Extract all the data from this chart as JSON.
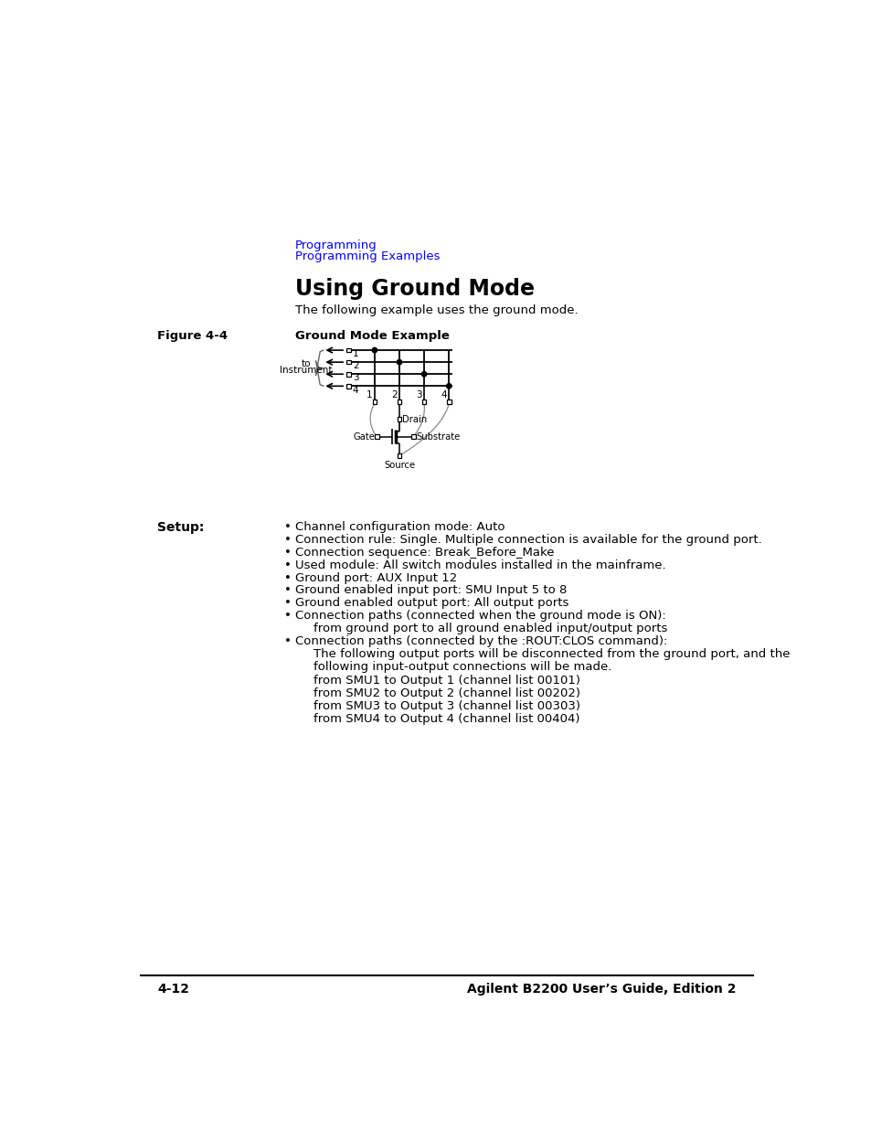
{
  "page_bg": "#ffffff",
  "breadcrumb_color": "#0000ff",
  "breadcrumb1": "Programming",
  "breadcrumb2": "Programming Examples",
  "section_title": "Using Ground Mode",
  "intro_text": "The following example uses the ground mode.",
  "figure_label": "Figure 4-4",
  "figure_title": "Ground Mode Example",
  "setup_label": "Setup:",
  "bullet_items": [
    "Channel configuration mode: Auto",
    "Connection rule: Single. Multiple connection is available for the ground port.",
    "Connection sequence: Break_Before_Make",
    "Used module: All switch modules installed in the mainframe.",
    "Ground port: AUX Input 12",
    "Ground enabled input port: SMU Input 5 to 8",
    "Ground enabled output port: All output ports",
    "Connection paths (connected when the ground mode is ON):",
    "Connection paths (connected by the :ROUT:CLOS command):"
  ],
  "sub_text1": "from ground port to all ground enabled input/output ports",
  "sub_text2a": "The following output ports will be disconnected from the ground port, and the",
  "sub_text2b": "following input-output connections will be made.",
  "sub_text3": "from SMU1 to Output 1 (channel list 00101)",
  "sub_text4": "from SMU2 to Output 2 (channel list 00202)",
  "sub_text5": "from SMU3 to Output 3 (channel list 00303)",
  "sub_text6": "from SMU4 to Output 4 (channel list 00404)",
  "footer_left": "4-12",
  "footer_right": "Agilent B2200 User’s Guide, Edition 2"
}
